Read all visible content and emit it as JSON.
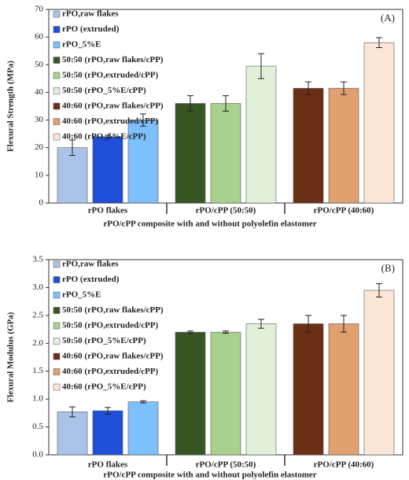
{
  "chart_data": [
    {
      "type": "bar",
      "panel_label": "(A)",
      "ylabel": "Flexural Strength (MPa)",
      "xlabel": "rPO/cPP composite with and without polyolefin elastomer",
      "categories": [
        "rPO flakes",
        "rPO/cPP (50:50)",
        "rPO/cPP (40:60)"
      ],
      "ylim": [
        0,
        70
      ],
      "yticks": [
        0,
        10,
        20,
        30,
        40,
        50,
        60,
        70
      ],
      "legend": "upper left",
      "series": [
        {
          "name": "rPO,raw flakes",
          "color": "#a9c4e8",
          "values": [
            20,
            null,
            null
          ],
          "errors": [
            2.8,
            null,
            null
          ]
        },
        {
          "name": "rPO (extruded)",
          "color": "#1f4fd8",
          "values": [
            24,
            null,
            null
          ],
          "errors": [
            0.5,
            null,
            null
          ]
        },
        {
          "name": "rPO_5%E",
          "color": "#7cc0ff",
          "values": [
            30,
            null,
            null
          ],
          "errors": [
            2.2,
            null,
            null
          ]
        },
        {
          "name": "50:50 (rPO,raw flakes/cPP)",
          "color": "#375623",
          "values": [
            null,
            36,
            null
          ],
          "errors": [
            null,
            2.8,
            null
          ]
        },
        {
          "name": "50:50 (rPO,extruded/cPP)",
          "color": "#a9d18e",
          "values": [
            null,
            36,
            null
          ],
          "errors": [
            null,
            2.8,
            null
          ]
        },
        {
          "name": "50:50 (rPO_5%E/cPP)",
          "color": "#e2f0d9",
          "values": [
            null,
            49.5,
            null
          ],
          "errors": [
            null,
            4.5,
            null
          ]
        },
        {
          "name": "40:60 (rPO,raw flakes/cPP)",
          "color": "#6b2f16",
          "values": [
            null,
            null,
            41.5
          ],
          "errors": [
            null,
            null,
            2.3
          ]
        },
        {
          "name": "40:60 (rPO,extruded/cPP)",
          "color": "#e0a070",
          "values": [
            null,
            null,
            41.5
          ],
          "errors": [
            null,
            null,
            2.3
          ]
        },
        {
          "name": "40:60 (rPO_5%E/cPP)",
          "color": "#fbe5d6",
          "values": [
            null,
            null,
            58
          ],
          "errors": [
            null,
            null,
            1.8
          ]
        }
      ]
    },
    {
      "type": "bar",
      "panel_label": "(B)",
      "ylabel": "Flexural Modulus (GPa)",
      "xlabel": "rPO/cPP composite with and without polyolefin elastomer",
      "categories": [
        "rPO flakes",
        "rPO/cPP (50:50)",
        "rPO/cPP (40:60)"
      ],
      "ylim": [
        0,
        3.5
      ],
      "yticks": [
        {
          "value": 0,
          "label": "0.0"
        },
        0.5,
        {
          "value": 1,
          "label": "1.0"
        },
        1.5,
        {
          "value": 2,
          "label": "2.0"
        },
        2.5,
        {
          "value": 3,
          "label": "3.0"
        },
        3.5
      ],
      "legend": "upper left",
      "series": [
        {
          "name": "rPO,raw flakes",
          "color": "#a9c4e8",
          "values": [
            0.77,
            null,
            null
          ],
          "errors": [
            0.09,
            null,
            null
          ]
        },
        {
          "name": "rPO (extruded)",
          "color": "#1f4fd8",
          "values": [
            0.79,
            null,
            null
          ],
          "errors": [
            0.06,
            null,
            null
          ]
        },
        {
          "name": "rPO_5%E",
          "color": "#7cc0ff",
          "values": [
            0.95,
            null,
            null
          ],
          "errors": [
            0.02,
            null,
            null
          ]
        },
        {
          "name": "50:50 (rPO,raw flakes/cPP)",
          "color": "#375623",
          "values": [
            null,
            2.2,
            null
          ],
          "errors": [
            null,
            0.02,
            null
          ]
        },
        {
          "name": "50:50 (rPO,extruded/cPP)",
          "color": "#a9d18e",
          "values": [
            null,
            2.2,
            null
          ],
          "errors": [
            null,
            0.02,
            null
          ]
        },
        {
          "name": "50:50 (rPO_5%E/cPP)",
          "color": "#e2f0d9",
          "values": [
            null,
            2.35,
            null
          ],
          "errors": [
            null,
            0.08,
            null
          ]
        },
        {
          "name": "40:60 (rPO,raw flakes/cPP)",
          "color": "#6b2f16",
          "values": [
            null,
            null,
            2.35
          ],
          "errors": [
            null,
            null,
            0.15
          ]
        },
        {
          "name": "40:60 (rPO,extruded/cPP)",
          "color": "#e0a070",
          "values": [
            null,
            null,
            2.35
          ],
          "errors": [
            null,
            null,
            0.15
          ]
        },
        {
          "name": "40:60 (rPO_5%E/cPP)",
          "color": "#fbe5d6",
          "values": [
            null,
            null,
            2.95
          ],
          "errors": [
            null,
            null,
            0.12
          ]
        }
      ]
    }
  ]
}
